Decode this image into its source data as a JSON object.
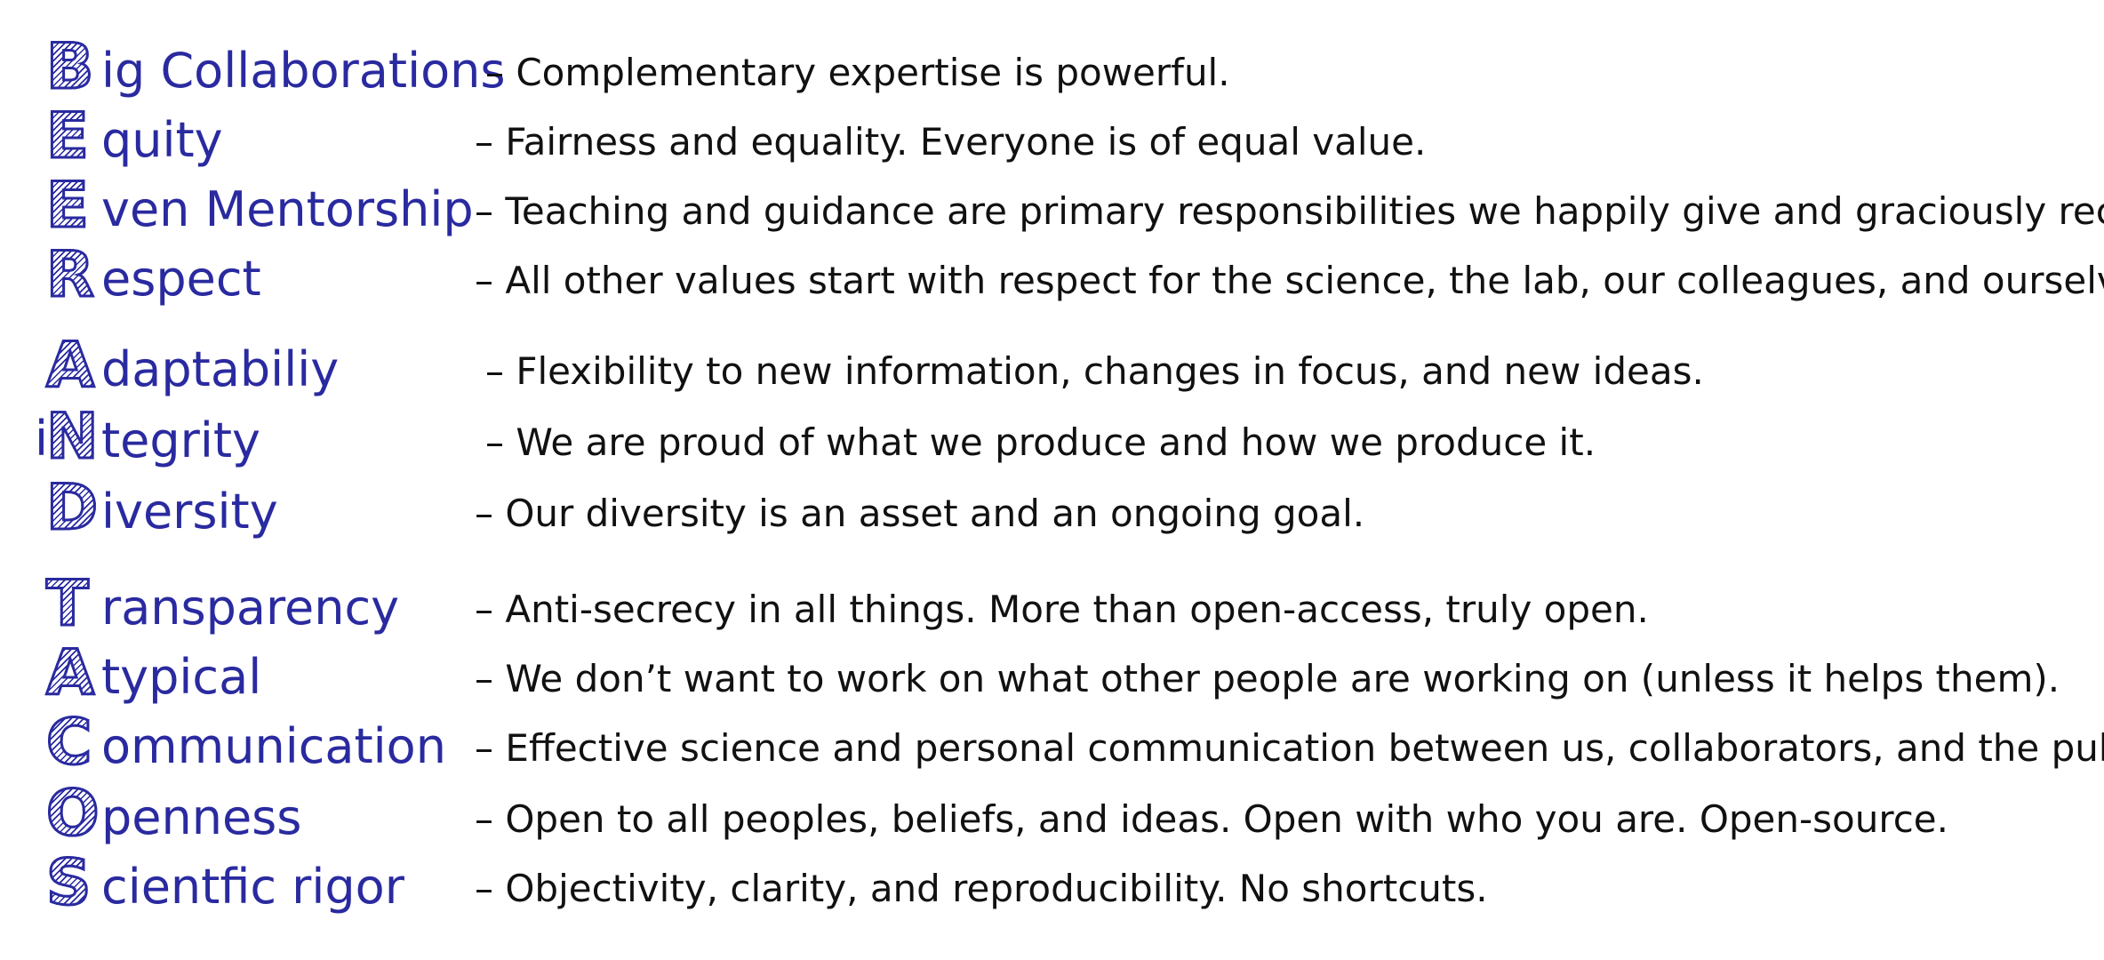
{
  "colors": {
    "accent": "#2a2aa0",
    "text": "#111111",
    "background": "#ffffff"
  },
  "values": [
    {
      "prefix": "",
      "letter": "B",
      "rest": "ig Collaborations",
      "description": "– Complementary expertise is powerful."
    },
    {
      "prefix": "",
      "letter": "E",
      "rest": "quity",
      "description": "– Fairness and equality. Everyone is of equal value."
    },
    {
      "prefix": "",
      "letter": "E",
      "rest": "ven Mentorship",
      "description": "– Teaching and guidance are primary responsibilities we happily give and graciously receive."
    },
    {
      "prefix": "",
      "letter": "R",
      "rest": "espect",
      "description": "– All other values start with respect for the science, the lab, our colleagues, and ourselves."
    },
    {
      "prefix": "",
      "letter": "A",
      "rest": "daptabiliy",
      "description": "– Flexibility to new information, changes in focus, and new ideas."
    },
    {
      "prefix": "i",
      "letter": "N",
      "rest": "tegrity",
      "description": "– We are proud of what we produce and how we produce it."
    },
    {
      "prefix": "",
      "letter": "D",
      "rest": "iversity",
      "description": "– Our diversity is an asset and an ongoing goal."
    },
    {
      "prefix": "",
      "letter": "T",
      "rest": "ransparency",
      "description": "– Anti-secrecy in all things. More than open-access, truly open."
    },
    {
      "prefix": "",
      "letter": "A",
      "rest": "typical",
      "description": "– We don’t want to work on what other people are working on (unless it helps them)."
    },
    {
      "prefix": "",
      "letter": "C",
      "rest": "ommunication",
      "description": "– Effective science and personal communication between us, collaborators, and the public."
    },
    {
      "prefix": "",
      "letter": "O",
      "rest": "penness",
      "description": "– Open to all peoples, beliefs, and ideas. Open with who you are. Open-source."
    },
    {
      "prefix": "",
      "letter": "S",
      "rest": "cientfic rigor",
      "description": "– Objectivity, clarity, and reproducibility. No shortcuts."
    }
  ]
}
